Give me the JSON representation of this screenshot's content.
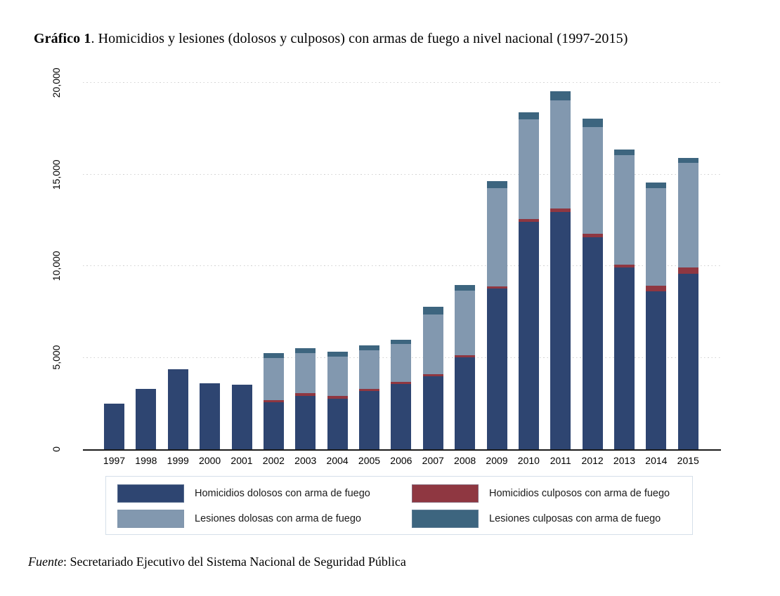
{
  "figure": {
    "title_bold": "Gráfico 1",
    "title_rest": ". Homicidios y lesiones (dolosos y culposos) con armas de fuego a nivel nacional (1997-2015)",
    "source_italic": "Fuente",
    "source_rest": ": Secretariado Ejecutivo del Sistema Nacional de Seguridad Pública"
  },
  "chart_data": {
    "type": "bar",
    "stacked": true,
    "title": "Gráfico 1. Homicidios y lesiones (dolosos y culposos) con armas de fuego a nivel nacional (1997-2015)",
    "xlabel": "",
    "ylabel": "",
    "ylim": [
      0,
      20000
    ],
    "grid": "horizontal-dotted",
    "legend_position": "bottom",
    "categories": [
      "1997",
      "1998",
      "1999",
      "2000",
      "2001",
      "2002",
      "2003",
      "2004",
      "2005",
      "2006",
      "2007",
      "2008",
      "2009",
      "2010",
      "2011",
      "2012",
      "2013",
      "2014",
      "2015"
    ],
    "series": [
      {
        "name": "Homicidios dolosos con arma de fuego",
        "color": "#2e4571",
        "values": [
          2500,
          3280,
          4380,
          3590,
          3510,
          2550,
          2920,
          2770,
          3180,
          3580,
          4000,
          5030,
          8770,
          12410,
          12940,
          11590,
          9910,
          8640,
          9570
        ]
      },
      {
        "name": "Homicidios culposos con arma de fuego",
        "color": "#8f3741",
        "values": [
          0,
          0,
          0,
          0,
          0,
          130,
          130,
          150,
          110,
          100,
          90,
          90,
          120,
          170,
          215,
          180,
          165,
          290,
          355
        ]
      },
      {
        "name": "Lesiones dolosas con arma de fuego",
        "color": "#8298af",
        "values": [
          0,
          0,
          0,
          0,
          0,
          2300,
          2200,
          2150,
          2130,
          2070,
          3270,
          3530,
          5355,
          5410,
          5890,
          5825,
          5985,
          5340,
          5690
        ]
      },
      {
        "name": "Lesiones culposas con arma de fuego",
        "color": "#3d657f",
        "values": [
          0,
          0,
          0,
          0,
          0,
          280,
          260,
          260,
          260,
          230,
          430,
          320,
          385,
          410,
          510,
          460,
          295,
          295,
          270
        ]
      }
    ],
    "stack_order_bottom_to_top": [
      "Homicidios dolosos con arma de fuego",
      "Homicidios culposos con arma de fuego",
      "Lesiones dolosas con arma de fuego",
      "Lesiones culposas con arma de fuego"
    ],
    "yticks": [
      {
        "label": "0",
        "value": 0
      },
      {
        "label": "5,000",
        "value": 5000
      },
      {
        "label": "10,000",
        "value": 10000
      },
      {
        "label": "15,000",
        "value": 15000
      },
      {
        "label": "20,000",
        "value": 20000
      }
    ]
  },
  "colors": {
    "axis": "#1a1a1a",
    "gridline": "#d2d2d2",
    "legend_border": "#d5dfe9",
    "background": "#ffffff"
  }
}
